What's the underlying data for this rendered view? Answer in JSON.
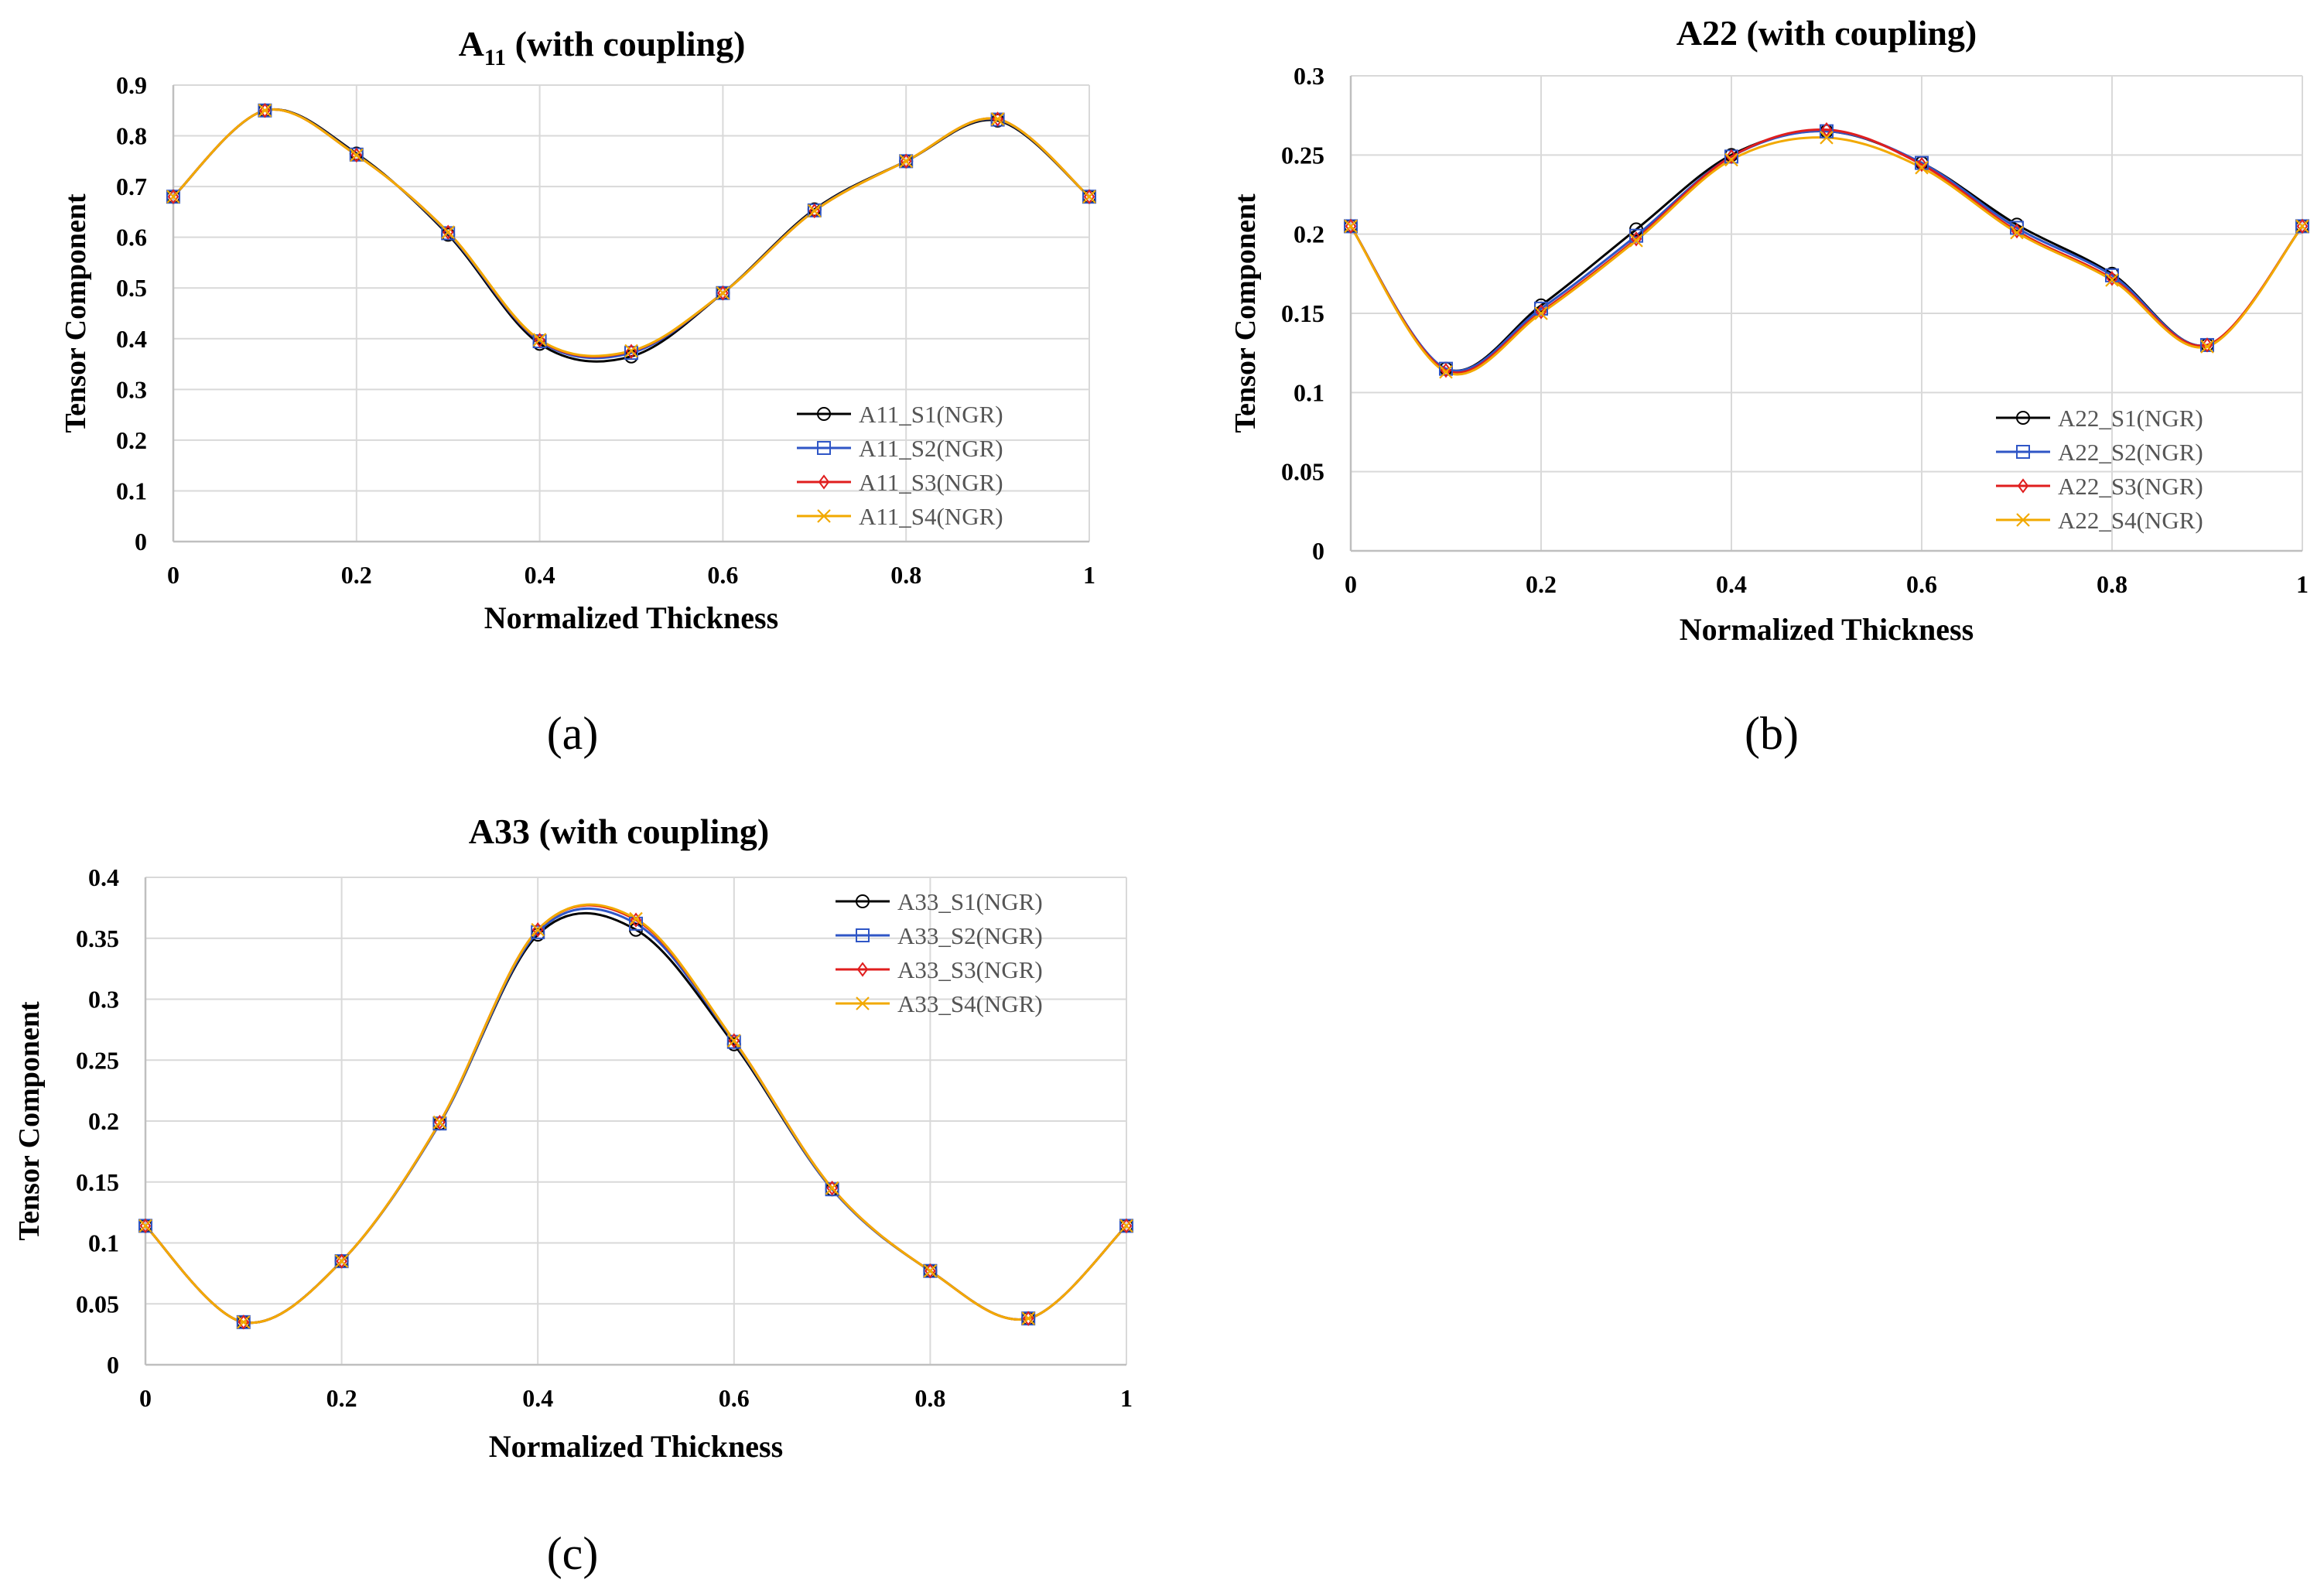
{
  "colors": {
    "S1": "#000000",
    "S2": "#2f56c6",
    "S3": "#e01e1e",
    "S4": "#f2a900",
    "grid": "#d9d9d9",
    "axis": "#bfbfbf"
  },
  "chart_data": [
    {
      "type": "line",
      "title_main": "A",
      "title_sub": "11",
      "title_rest": " (with coupling)",
      "xlabel": "Normalized  Thickness",
      "ylabel": "Tensor Component",
      "caption": "(a)",
      "x": [
        0,
        0.1,
        0.2,
        0.3,
        0.4,
        0.5,
        0.6,
        0.7,
        0.8,
        0.9,
        1
      ],
      "xlim": [
        0,
        1
      ],
      "ylim": [
        0,
        0.9
      ],
      "xticks": [
        0,
        0.2,
        0.4,
        0.6,
        0.8,
        1
      ],
      "xtick_labels": [
        "0",
        "0.2",
        "0.4",
        "0.6",
        "0.8",
        "1"
      ],
      "yticks": [
        0,
        0.1,
        0.2,
        0.3,
        0.4,
        0.5,
        0.6,
        0.7,
        0.8,
        0.9
      ],
      "ytick_labels": [
        "0",
        "0.1",
        "0.2",
        "0.3",
        "0.4",
        "0.5",
        "0.6",
        "0.7",
        "0.8",
        "0.9"
      ],
      "legend_position": "bottom-right",
      "grid": true,
      "series": [
        {
          "name": "A11_S1(NGR)",
          "marker": "circle",
          "values": [
            0.68,
            0.85,
            0.765,
            0.605,
            0.39,
            0.365,
            0.49,
            0.655,
            0.75,
            0.83,
            0.68
          ]
        },
        {
          "name": "A11_S2(NGR)",
          "marker": "square",
          "values": [
            0.68,
            0.85,
            0.763,
            0.608,
            0.395,
            0.372,
            0.49,
            0.653,
            0.75,
            0.832,
            0.68
          ]
        },
        {
          "name": "A11_S3(NGR)",
          "marker": "diamond",
          "values": [
            0.68,
            0.85,
            0.762,
            0.61,
            0.397,
            0.375,
            0.49,
            0.652,
            0.75,
            0.833,
            0.68
          ]
        },
        {
          "name": "A11_S4(NGR)",
          "marker": "x",
          "values": [
            0.68,
            0.85,
            0.762,
            0.61,
            0.398,
            0.376,
            0.49,
            0.652,
            0.75,
            0.833,
            0.68
          ]
        }
      ]
    },
    {
      "type": "line",
      "title_main": "A22",
      "title_sub": "",
      "title_rest": " (with coupling)",
      "xlabel": "Normalized  Thickness",
      "ylabel": "Tensor Component",
      "caption": "(b)",
      "x": [
        0,
        0.1,
        0.2,
        0.3,
        0.4,
        0.5,
        0.6,
        0.7,
        0.8,
        0.9,
        1
      ],
      "xlim": [
        0,
        1
      ],
      "ylim": [
        0,
        0.3
      ],
      "xticks": [
        0,
        0.2,
        0.4,
        0.6,
        0.8,
        1
      ],
      "xtick_labels": [
        "0",
        "0.2",
        "0.4",
        "0.6",
        "0.8",
        "1"
      ],
      "yticks": [
        0,
        0.05,
        0.1,
        0.15,
        0.2,
        0.25,
        0.3
      ],
      "ytick_labels": [
        "0",
        "0.05",
        "0.1",
        "0.15",
        "0.2",
        "0.25",
        "0.3"
      ],
      "legend_position": "bottom-right",
      "grid": true,
      "series": [
        {
          "name": "A22_S1(NGR)",
          "marker": "circle",
          "values": [
            0.205,
            0.115,
            0.155,
            0.203,
            0.25,
            0.265,
            0.245,
            0.206,
            0.175,
            0.13,
            0.205
          ]
        },
        {
          "name": "A22_S2(NGR)",
          "marker": "square",
          "values": [
            0.205,
            0.115,
            0.153,
            0.199,
            0.249,
            0.265,
            0.245,
            0.204,
            0.174,
            0.13,
            0.205
          ]
        },
        {
          "name": "A22_S3(NGR)",
          "marker": "diamond",
          "values": [
            0.205,
            0.114,
            0.151,
            0.197,
            0.249,
            0.266,
            0.244,
            0.202,
            0.172,
            0.13,
            0.205
          ]
        },
        {
          "name": "A22_S4(NGR)",
          "marker": "x",
          "values": [
            0.205,
            0.113,
            0.15,
            0.196,
            0.247,
            0.261,
            0.242,
            0.201,
            0.171,
            0.129,
            0.205
          ]
        }
      ]
    },
    {
      "type": "line",
      "title_main": "A33",
      "title_sub": "",
      "title_rest": " (with coupling)",
      "xlabel": "Normalized  Thickness",
      "ylabel": "Tensor Component",
      "caption": "(c)",
      "x": [
        0,
        0.1,
        0.2,
        0.3,
        0.4,
        0.5,
        0.6,
        0.7,
        0.8,
        0.9,
        1
      ],
      "xlim": [
        0,
        1
      ],
      "ylim": [
        0,
        0.4
      ],
      "xticks": [
        0,
        0.2,
        0.4,
        0.6,
        0.8,
        1
      ],
      "xtick_labels": [
        "0",
        "0.2",
        "0.4",
        "0.6",
        "0.8",
        "1"
      ],
      "yticks": [
        0,
        0.05,
        0.1,
        0.15,
        0.2,
        0.25,
        0.3,
        0.35,
        0.4
      ],
      "ytick_labels": [
        "0",
        "0.05",
        "0.1",
        "0.15",
        "0.2",
        "0.25",
        "0.3",
        "0.35",
        "0.4"
      ],
      "legend_position": "top-right",
      "grid": true,
      "series": [
        {
          "name": "A33_S1(NGR)",
          "marker": "circle",
          "values": [
            0.114,
            0.035,
            0.085,
            0.198,
            0.353,
            0.357,
            0.263,
            0.144,
            0.077,
            0.038,
            0.114
          ]
        },
        {
          "name": "A33_S2(NGR)",
          "marker": "square",
          "values": [
            0.114,
            0.035,
            0.085,
            0.198,
            0.355,
            0.362,
            0.265,
            0.144,
            0.077,
            0.038,
            0.114
          ]
        },
        {
          "name": "A33_S3(NGR)",
          "marker": "diamond",
          "values": [
            0.114,
            0.035,
            0.085,
            0.199,
            0.357,
            0.365,
            0.266,
            0.145,
            0.077,
            0.038,
            0.114
          ]
        },
        {
          "name": "A33_S4(NGR)",
          "marker": "x",
          "values": [
            0.114,
            0.035,
            0.085,
            0.199,
            0.357,
            0.366,
            0.266,
            0.145,
            0.077,
            0.038,
            0.114
          ]
        }
      ]
    }
  ]
}
